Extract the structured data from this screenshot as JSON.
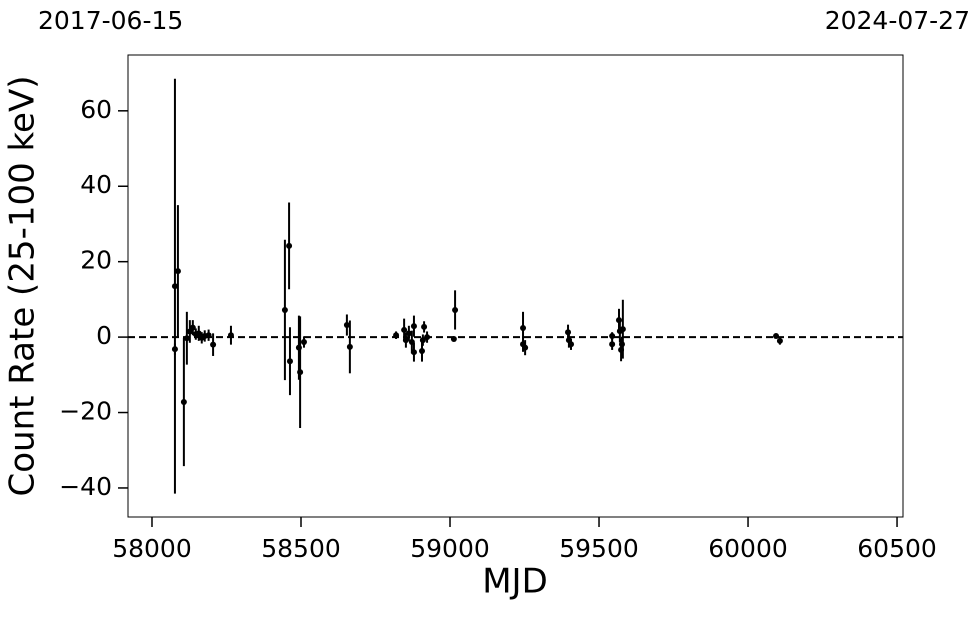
{
  "chart_data": {
    "type": "scatter",
    "date_labels": [
      "2017-06-15",
      "2024-07-27"
    ],
    "xlabel": "MJD",
    "ylabel": "Count Rate (25-100 keV)",
    "color": "#000000",
    "hline": 0,
    "xlim": [
      57919.5,
      60520
    ],
    "ylim": [
      -47.7,
      74.8
    ],
    "xticks": [
      58000,
      58500,
      59000,
      59500,
      60000,
      60500
    ],
    "yticks": [
      {
        "value": -40,
        "label": "−40"
      },
      {
        "value": -20,
        "label": "−20"
      },
      0,
      20,
      40,
      60
    ],
    "x": [
      58077,
      58077,
      58087,
      58107,
      58117,
      58127,
      58137,
      58147,
      58157,
      58167,
      58177,
      58190,
      58205,
      58265,
      58446,
      58460,
      58463,
      58493,
      58497,
      58510,
      58654,
      58664,
      58819,
      58846,
      58852,
      58862,
      58872,
      58879,
      58879,
      58906,
      58913,
      58909,
      58923,
      59013,
      59017,
      59245,
      59245,
      59252,
      59396,
      59399,
      59406,
      59544,
      59544,
      59567,
      59570,
      59574,
      59577,
      59580,
      60094,
      60107
    ],
    "values": [
      13.5,
      -3.2,
      17.5,
      -17.2,
      -0.3,
      1.5,
      2.5,
      0.8,
      1,
      -0.2,
      0.3,
      0.5,
      -2,
      0.5,
      7.2,
      24.2,
      -6.4,
      -2.8,
      -9.3,
      -1.3,
      3.2,
      -2.6,
      0.5,
      1.9,
      -0.8,
      1,
      -1.3,
      2.9,
      -4,
      -3.7,
      2.7,
      -0.8,
      0,
      -0.5,
      7.2,
      2.4,
      -1.9,
      -2.8,
      1.3,
      -0.8,
      -1.9,
      0.3,
      -1.9,
      4.5,
      1.6,
      -3.4,
      -1.9,
      2.1,
      0.3,
      -1
    ],
    "errors": [
      55,
      1.5,
      17.5,
      17,
      7,
      3,
      2,
      1.5,
      2,
      1.5,
      1.5,
      1.5,
      3,
      2.5,
      18.6,
      11.5,
      9,
      8.5,
      14.8,
      1.5,
      2.8,
      7,
      1,
      3,
      2,
      2,
      3,
      2.8,
      2.5,
      2.8,
      1.5,
      1.5,
      1.5,
      0.5,
      5.2,
      4.3,
      2,
      2,
      2,
      2,
      1.5,
      1,
      1.5,
      3,
      3,
      3,
      2,
      7.8,
      0.5,
      1
    ]
  }
}
